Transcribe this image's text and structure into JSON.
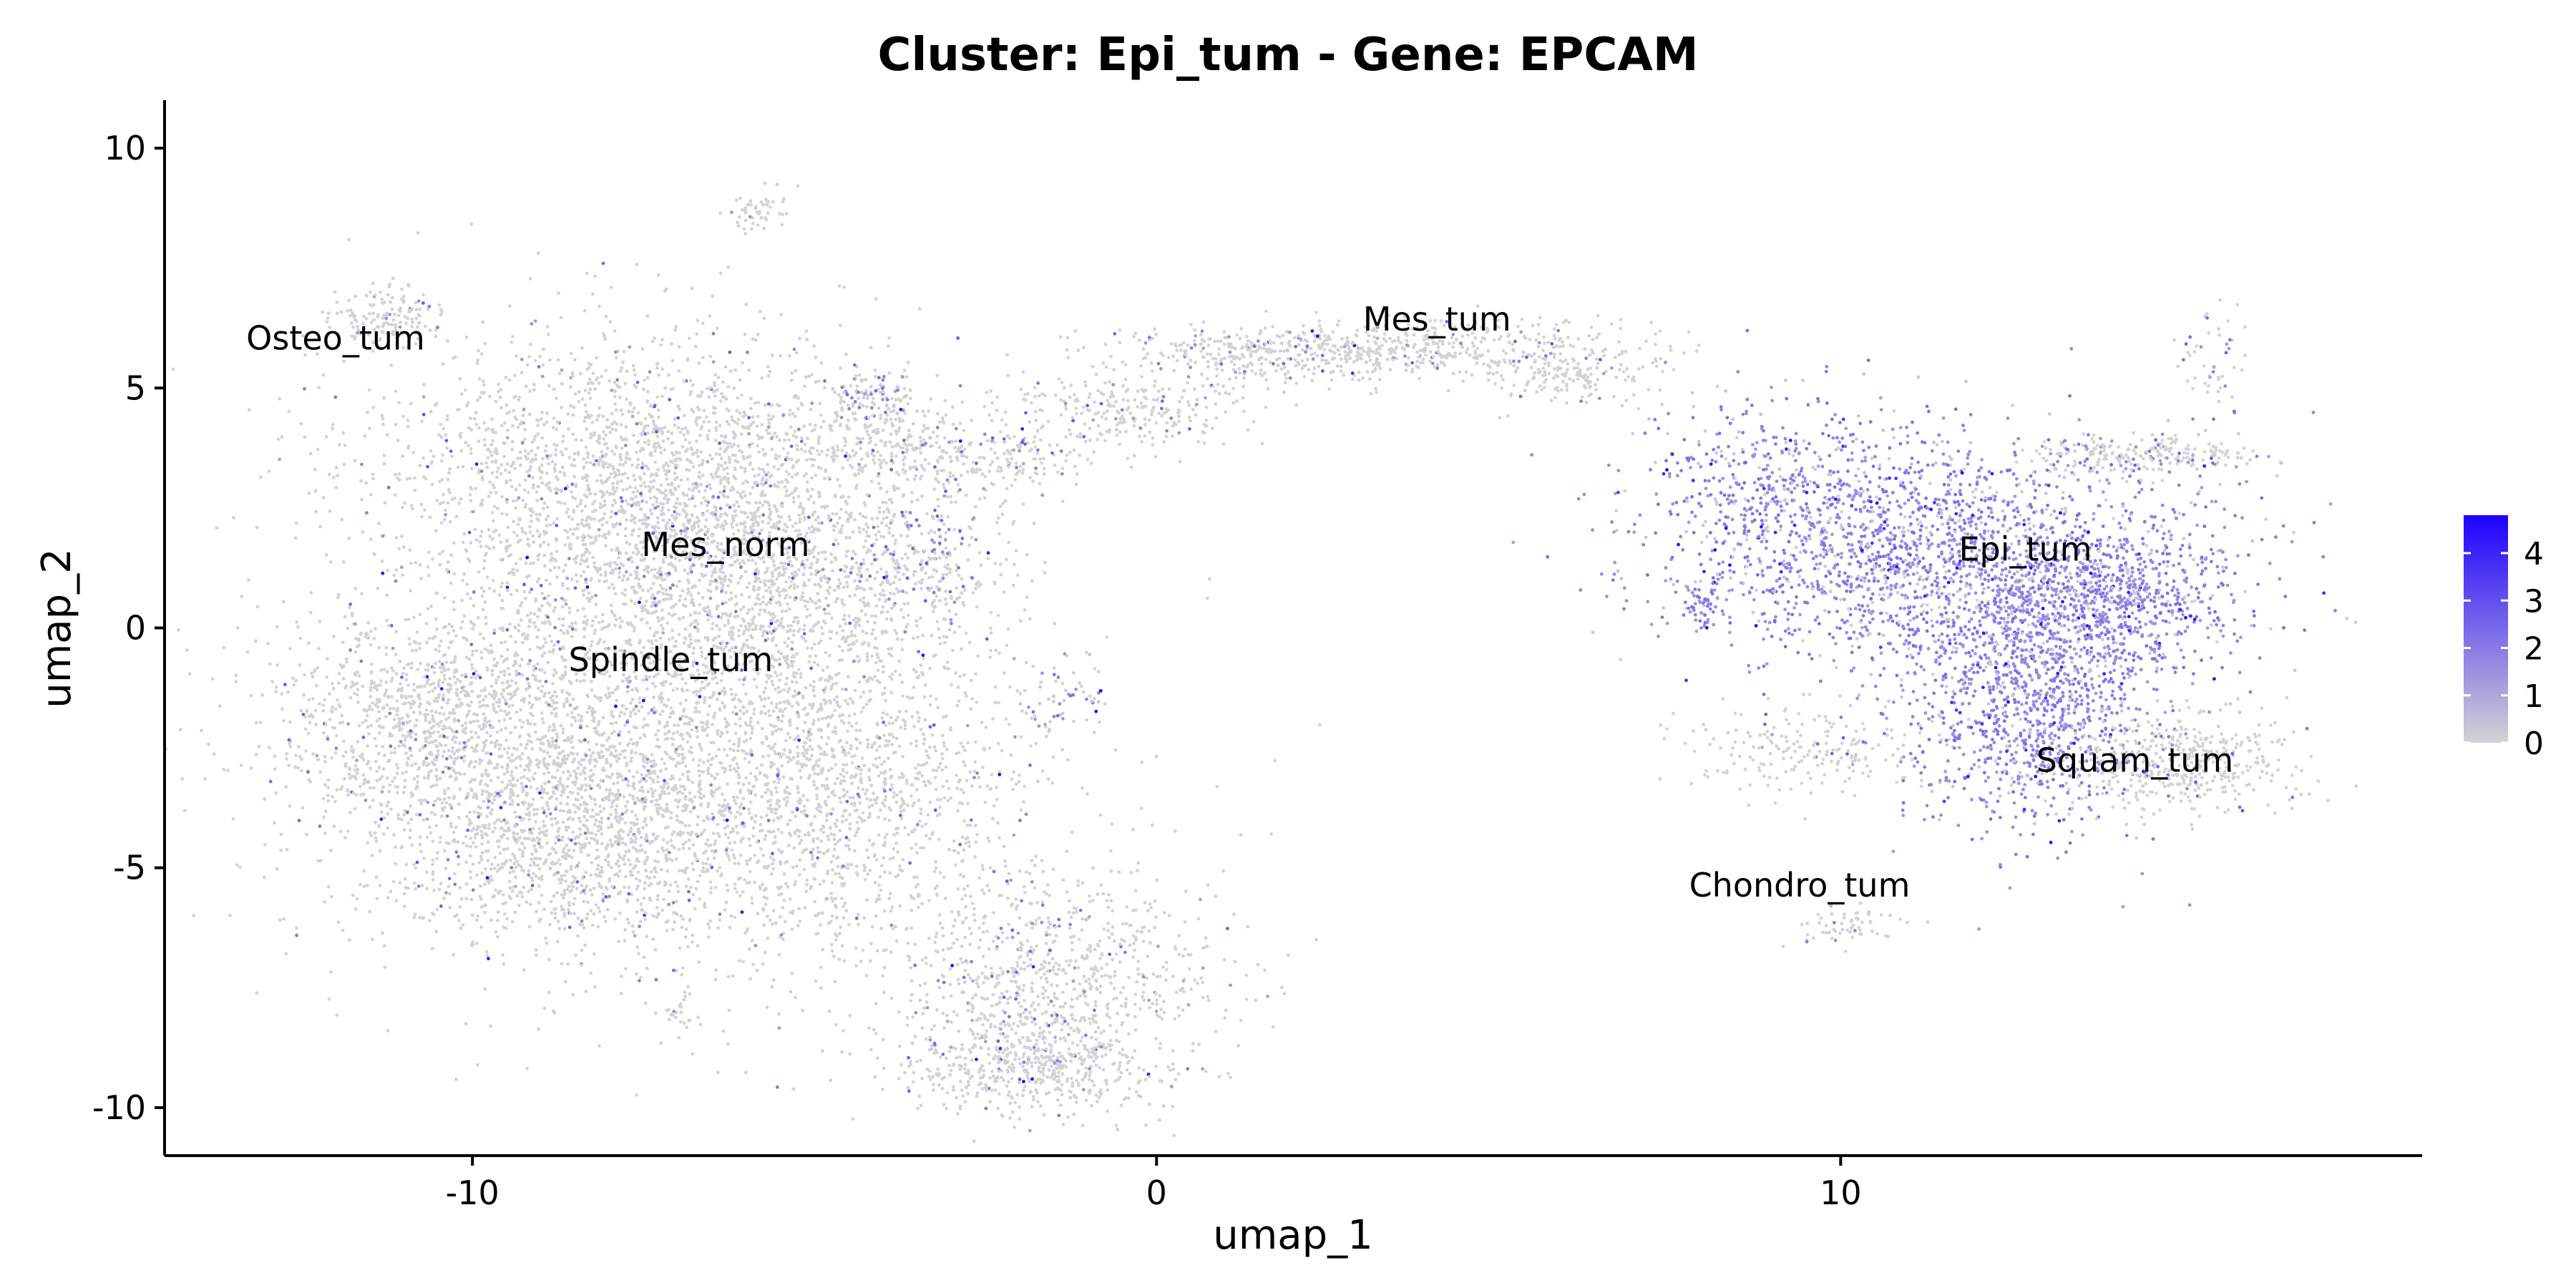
{
  "chart_data": {
    "type": "scatter",
    "title": "Cluster: Epi_tum - Gene: EPCAM",
    "xlabel": "umap_1",
    "ylabel": "umap_2",
    "xlim": [
      -14.5,
      18.5
    ],
    "ylim": [
      -11,
      11
    ],
    "xticks": [
      -10,
      0,
      10
    ],
    "xtick_labels": [
      "-10",
      "0",
      "10"
    ],
    "yticks": [
      -10,
      -5,
      0,
      5,
      10
    ],
    "ytick_labels": [
      "-10",
      "-5",
      "0",
      "5",
      "10"
    ],
    "grid": false,
    "legend": {
      "type": "colorbar",
      "position": "right",
      "range": [
        0,
        4.8
      ],
      "ticks": [
        0,
        1,
        2,
        3,
        4
      ],
      "tick_labels": [
        "0",
        "1",
        "2",
        "3",
        "4"
      ],
      "color_low": "#d3d3d3",
      "color_high": "#1f00ff"
    },
    "clusters": [
      {
        "name": "Osteo_tum",
        "label_x": -12.0,
        "label_y": 5.8
      },
      {
        "name": "Mes_tum",
        "label_x": 4.1,
        "label_y": 6.2
      },
      {
        "name": "Mes_norm",
        "label_x": -6.3,
        "label_y": 1.5
      },
      {
        "name": "Spindle_tum",
        "label_x": -7.1,
        "label_y": -0.9
      },
      {
        "name": "Epi_tum",
        "label_x": 12.7,
        "label_y": 1.4
      },
      {
        "name": "Squam_tum",
        "label_x": 14.3,
        "label_y": -3.0
      },
      {
        "name": "Chondro_tum",
        "label_x": 9.4,
        "label_y": -5.6
      }
    ],
    "point_regions": [
      {
        "cx": -7.0,
        "cy": -2.5,
        "sx": 2.5,
        "sy": 2.2,
        "n": 3200,
        "expr": 0.05
      },
      {
        "cx": -10.5,
        "cy": -2.0,
        "sx": 1.2,
        "sy": 1.2,
        "n": 900,
        "expr": 0.05
      },
      {
        "cx": -8.5,
        "cy": -4.5,
        "sx": 1.3,
        "sy": 1.0,
        "n": 800,
        "expr": 0.05
      },
      {
        "cx": -7.5,
        "cy": 3.0,
        "sx": 2.0,
        "sy": 1.6,
        "n": 2400,
        "expr": 0.06
      },
      {
        "cx": -5.5,
        "cy": 1.0,
        "sx": 1.5,
        "sy": 1.2,
        "n": 900,
        "expr": 0.08
      },
      {
        "cx": -4.5,
        "cy": -3.5,
        "sx": 1.2,
        "sy": 1.5,
        "n": 500,
        "expr": 0.05
      },
      {
        "cx": -11.2,
        "cy": 6.5,
        "sx": 0.4,
        "sy": 0.3,
        "n": 150,
        "expr": 0.05
      },
      {
        "cx": -5.8,
        "cy": 8.7,
        "sx": 0.25,
        "sy": 0.2,
        "n": 50,
        "expr": 0.05
      },
      {
        "cx": -7.0,
        "cy": -8.0,
        "sx": 0.15,
        "sy": 0.2,
        "n": 25,
        "expr": 0.05
      },
      {
        "cx": -4.2,
        "cy": 4.8,
        "sx": 0.3,
        "sy": 0.3,
        "n": 60,
        "expr": 0.6
      },
      {
        "cx": -3.2,
        "cy": 1.5,
        "sx": 0.4,
        "sy": 0.8,
        "n": 120,
        "expr": 0.4
      },
      {
        "cx": -1.5,
        "cy": -7.5,
        "sx": 1.2,
        "sy": 1.2,
        "n": 900,
        "expr": 0.1
      },
      {
        "cx": -1.8,
        "cy": -9.2,
        "sx": 0.9,
        "sy": 0.4,
        "n": 400,
        "expr": 0.05
      },
      {
        "cx": -1.3,
        "cy": -1.4,
        "sx": 0.3,
        "sy": 0.3,
        "n": 40,
        "expr": 0.7
      },
      {
        "cx": -4.0,
        "cy": 4.0,
        "sx": 0.6,
        "sy": 0.5,
        "n": 150,
        "expr": 0.05
      },
      {
        "cx": -2.5,
        "cy": 3.5,
        "sx": 0.8,
        "sy": 0.4,
        "n": 220,
        "expr": 0.1
      },
      {
        "cx": -0.5,
        "cy": 4.5,
        "sx": 1.0,
        "sy": 0.4,
        "n": 250,
        "expr": 0.1
      },
      {
        "cx": 1.5,
        "cy": 5.7,
        "sx": 1.2,
        "sy": 0.3,
        "n": 300,
        "expr": 0.1
      },
      {
        "cx": 4.0,
        "cy": 5.8,
        "sx": 1.5,
        "sy": 0.3,
        "n": 450,
        "expr": 0.08
      },
      {
        "cx": 6.0,
        "cy": 5.2,
        "sx": 0.7,
        "sy": 0.3,
        "n": 150,
        "expr": 0.05
      },
      {
        "cx": 11.5,
        "cy": 1.5,
        "sx": 1.9,
        "sy": 1.2,
        "n": 2000,
        "expr": 0.8
      },
      {
        "cx": 12.8,
        "cy": -1.5,
        "sx": 0.9,
        "sy": 1.3,
        "n": 1100,
        "expr": 0.85
      },
      {
        "cx": 14.0,
        "cy": 0.5,
        "sx": 0.9,
        "sy": 0.7,
        "n": 600,
        "expr": 0.85
      },
      {
        "cx": 9.0,
        "cy": 3.0,
        "sx": 0.9,
        "sy": 0.9,
        "n": 350,
        "expr": 0.75
      },
      {
        "cx": 8.0,
        "cy": 0.5,
        "sx": 0.2,
        "sy": 0.3,
        "n": 50,
        "expr": 0.9
      },
      {
        "cx": 14.5,
        "cy": 3.6,
        "sx": 0.8,
        "sy": 0.2,
        "n": 220,
        "expr": 0.15
      },
      {
        "cx": 15.0,
        "cy": -2.8,
        "sx": 0.8,
        "sy": 0.5,
        "n": 450,
        "expr": 0.05
      },
      {
        "cx": 9.5,
        "cy": -2.5,
        "sx": 0.9,
        "sy": 0.5,
        "n": 200,
        "expr": 0.05
      },
      {
        "cx": 10.0,
        "cy": -6.2,
        "sx": 0.4,
        "sy": 0.2,
        "n": 60,
        "expr": 0.05
      },
      {
        "cx": 15.5,
        "cy": 5.5,
        "sx": 0.3,
        "sy": 0.6,
        "n": 50,
        "expr": 0.3
      }
    ]
  }
}
